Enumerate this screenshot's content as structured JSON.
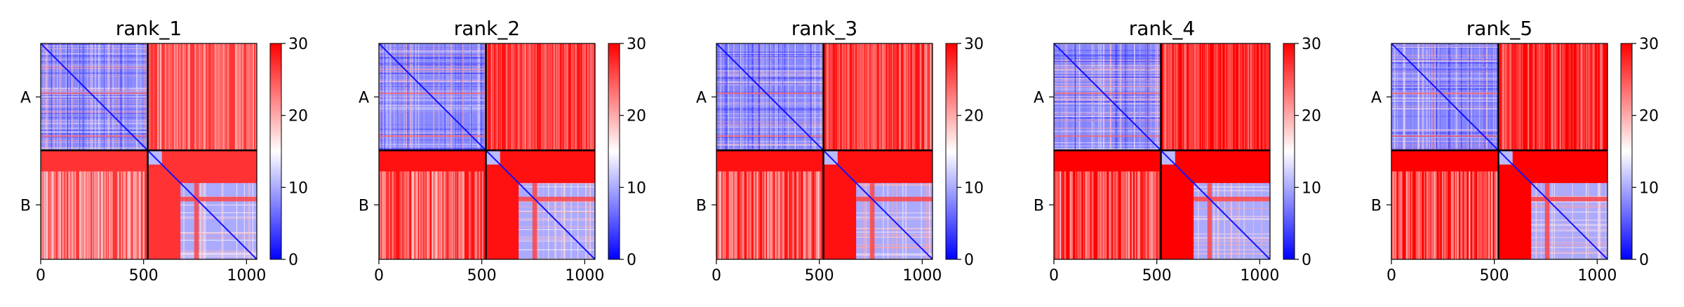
{
  "chart_data": [
    {
      "type": "heatmap",
      "title": "rank_1",
      "x_ticks": [
        0,
        500,
        1000
      ],
      "y_ticks": [
        "A",
        "B"
      ],
      "chain_lengths": [
        520,
        530
      ],
      "colorbar": {
        "min": 0,
        "max": 30,
        "ticks": [
          0,
          10,
          20,
          30
        ],
        "colors": [
          "#0000ff",
          "#ffffff",
          "#ff0000"
        ]
      },
      "intra_chain_error": 12,
      "inter_chain_error": 27,
      "diagonal_error": 1
    },
    {
      "type": "heatmap",
      "title": "rank_2",
      "x_ticks": [
        0,
        500,
        1000
      ],
      "y_ticks": [
        "A",
        "B"
      ],
      "chain_lengths": [
        520,
        530
      ],
      "colorbar": {
        "min": 0,
        "max": 30,
        "ticks": [
          0,
          10,
          20,
          30
        ],
        "colors": [
          "#0000ff",
          "#ffffff",
          "#ff0000"
        ]
      },
      "intra_chain_error": 12,
      "inter_chain_error": 29,
      "diagonal_error": 1
    },
    {
      "type": "heatmap",
      "title": "rank_3",
      "x_ticks": [
        0,
        500,
        1000
      ],
      "y_ticks": [
        "A",
        "B"
      ],
      "chain_lengths": [
        520,
        530
      ],
      "colorbar": {
        "min": 0,
        "max": 30,
        "ticks": [
          0,
          10,
          20,
          30
        ],
        "colors": [
          "#0000ff",
          "#ffffff",
          "#ff0000"
        ]
      },
      "intra_chain_error": 12,
      "inter_chain_error": 29,
      "diagonal_error": 1
    },
    {
      "type": "heatmap",
      "title": "rank_4",
      "x_ticks": [
        0,
        500,
        1000
      ],
      "y_ticks": [
        "A",
        "B"
      ],
      "chain_lengths": [
        520,
        530
      ],
      "colorbar": {
        "min": 0,
        "max": 30,
        "ticks": [
          0,
          10,
          20,
          30
        ],
        "colors": [
          "#0000ff",
          "#ffffff",
          "#ff0000"
        ]
      },
      "intra_chain_error": 12,
      "inter_chain_error": 30,
      "diagonal_error": 1
    },
    {
      "type": "heatmap",
      "title": "rank_5",
      "x_ticks": [
        0,
        500,
        1000
      ],
      "y_ticks": [
        "A",
        "B"
      ],
      "chain_lengths": [
        520,
        530
      ],
      "colorbar": {
        "min": 0,
        "max": 30,
        "ticks": [
          0,
          10,
          20,
          30
        ],
        "colors": [
          "#0000ff",
          "#ffffff",
          "#ff0000"
        ]
      },
      "intra_chain_error": 12,
      "inter_chain_error": 30,
      "diagonal_error": 1
    }
  ]
}
